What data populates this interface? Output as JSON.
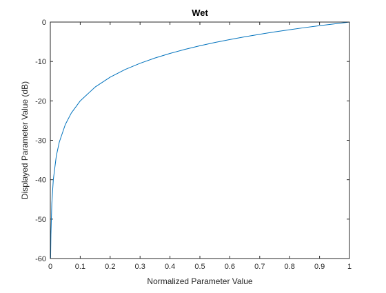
{
  "chart_data": {
    "type": "line",
    "title": "Wet",
    "xlabel": "Normalized Parameter Value",
    "ylabel": "Displayed Parameter Value (dB)",
    "xlim": [
      0,
      1
    ],
    "ylim": [
      -60,
      0
    ],
    "xticks": [
      0,
      0.1,
      0.2,
      0.3,
      0.4,
      0.5,
      0.6,
      0.7,
      0.8,
      0.9,
      1
    ],
    "xtick_labels": [
      "0",
      "0.1",
      "0.2",
      "0.3",
      "0.4",
      "0.5",
      "0.6",
      "0.7",
      "0.8",
      "0.9",
      "1"
    ],
    "yticks": [
      -60,
      -50,
      -40,
      -30,
      -20,
      -10,
      0
    ],
    "ytick_labels": [
      "-60",
      "-50",
      "-40",
      "-30",
      "-20",
      "-10",
      "0"
    ],
    "grid": false,
    "series": [
      {
        "color": "#0072bd",
        "x": [
          0.0005,
          0.001,
          0.002,
          0.005,
          0.01,
          0.02,
          0.03,
          0.05,
          0.07,
          0.1,
          0.15,
          0.2,
          0.25,
          0.3,
          0.35,
          0.4,
          0.45,
          0.5,
          0.55,
          0.6,
          0.65,
          0.7,
          0.75,
          0.8,
          0.85,
          0.9,
          0.95,
          1.0
        ],
        "y": [
          -60,
          -60,
          -53.98,
          -46.02,
          -40,
          -33.98,
          -30.46,
          -26.02,
          -23.1,
          -20,
          -16.48,
          -13.98,
          -12.04,
          -10.46,
          -9.12,
          -7.96,
          -6.94,
          -6.02,
          -5.19,
          -4.44,
          -3.74,
          -3.1,
          -2.5,
          -1.94,
          -1.41,
          -0.92,
          -0.45,
          0
        ]
      }
    ]
  }
}
